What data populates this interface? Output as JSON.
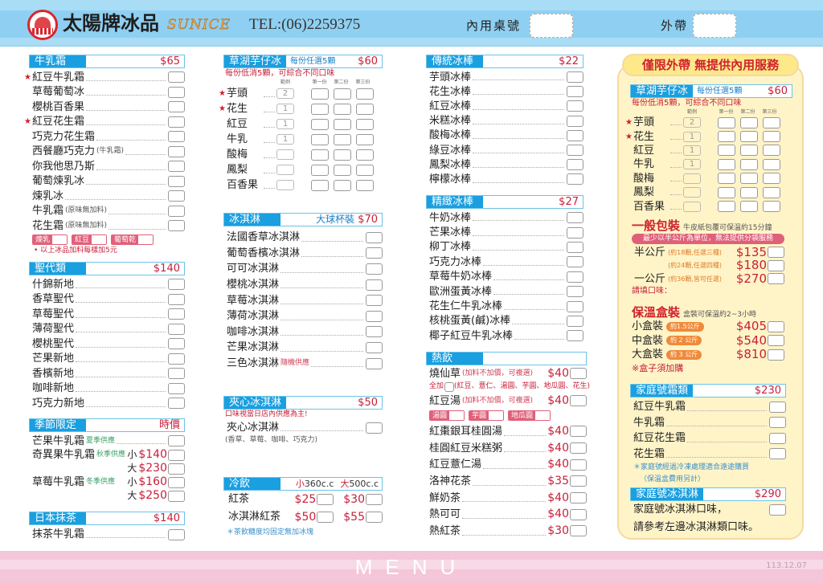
{
  "header": {
    "brand": "太陽牌冰品",
    "english": "SUNICE",
    "tel": "TEL:(06)2259375",
    "dine_in_label": "內用桌號",
    "takeout_label": "外帶",
    "bg_color": "#a9dcf5"
  },
  "footer": {
    "title": "MENU",
    "date": "113.12.07",
    "bg_color": "#f4c6da"
  },
  "colors": {
    "header_blue": "#1a9fe0",
    "price_red": "#c8203a",
    "season_green": "#3aa06a",
    "topping_pink": "#e0607a",
    "weight_orange": "#f08a3a",
    "takeout_box": "#fff4c8"
  },
  "col1": {
    "milk": {
      "title": "牛乳霜",
      "price": "$65",
      "items": [
        {
          "name": "紅豆牛乳霜",
          "star": true
        },
        {
          "name": "草莓葡萄冰"
        },
        {
          "name": "櫻桃百香果"
        },
        {
          "name": "紅豆花生霜",
          "star": true
        },
        {
          "name": "巧克力花生霜"
        },
        {
          "name": "西餐廳巧克力",
          "note": "(牛乳霜)"
        },
        {
          "name": "你我他思乃斯"
        },
        {
          "name": "葡萄煉乳冰"
        },
        {
          "name": "煉乳冰"
        },
        {
          "name": "牛乳霜",
          "note": "(原味無加料)"
        },
        {
          "name": "花生霜",
          "note": "(原味無加料)"
        }
      ],
      "toppings": [
        "煉乳",
        "紅豆",
        "葡萄乾"
      ],
      "footnote": "• 以上冰品加料每樣加5元"
    },
    "sundae": {
      "title": "聖代類",
      "price": "$140",
      "items": [
        {
          "name": "什錦新地"
        },
        {
          "name": "香草聖代"
        },
        {
          "name": "草莓聖代"
        },
        {
          "name": "薄荷聖代"
        },
        {
          "name": "櫻桃聖代"
        },
        {
          "name": "芒果新地"
        },
        {
          "name": "香檳新地"
        },
        {
          "name": "咖啡新地"
        },
        {
          "name": "巧克力新地"
        }
      ]
    },
    "season": {
      "title": "季節限定",
      "price": "時價",
      "items": [
        {
          "name": "芒果牛乳霜",
          "season": "夏季供應"
        },
        {
          "name": "奇異果牛乳霜",
          "season": "秋季供應",
          "options": [
            {
              "size": "小",
              "price": "$140"
            },
            {
              "size": "大",
              "price": "$230"
            }
          ]
        },
        {
          "name": "草莓牛乳霜",
          "season": "冬季供應",
          "options": [
            {
              "size": "小",
              "price": "$160"
            },
            {
              "size": "大",
              "price": "$250"
            }
          ]
        }
      ]
    },
    "matcha": {
      "title": "日本抹茶",
      "price": "$140",
      "items": [
        {
          "name": "抹茶牛乳霜"
        }
      ]
    }
  },
  "col2": {
    "taro": {
      "title": "草湖芋仔冰",
      "subtitle": "每份任選5顆",
      "price": "$60",
      "note": "每份低消5顆，可綜合不同口味",
      "columns": [
        "範例",
        "第一份",
        "第二份",
        "第三份"
      ],
      "items": [
        {
          "name": "芋頭",
          "star": true,
          "example": "2"
        },
        {
          "name": "花生",
          "star": true,
          "example": "1"
        },
        {
          "name": "紅豆",
          "example": "1"
        },
        {
          "name": "牛乳",
          "example": "1"
        },
        {
          "name": "酸梅",
          "example": ""
        },
        {
          "name": "鳳梨",
          "example": ""
        },
        {
          "name": "百香果",
          "example": ""
        }
      ]
    },
    "icecream": {
      "title": "冰淇淋",
      "subtitle": "大球杯裝",
      "price": "$70",
      "items": [
        {
          "name": "法國香草冰淇淋"
        },
        {
          "name": "葡萄香檳冰淇淋"
        },
        {
          "name": "可可冰淇淋"
        },
        {
          "name": "櫻桃冰淇淋"
        },
        {
          "name": "草莓冰淇淋"
        },
        {
          "name": "薄荷冰淇淋"
        },
        {
          "name": "咖啡冰淇淋"
        },
        {
          "name": "芒果冰淇淋"
        },
        {
          "name": "三色冰淇淋",
          "note": "隨機供應"
        }
      ]
    },
    "sandwich": {
      "title": "夾心冰淇淋",
      "price": "$50",
      "note": "口味視當日店內供應為主!",
      "items": [
        {
          "name": "夾心冰淇淋",
          "sub": "(香草、草莓、咖啡、巧克力)"
        }
      ]
    },
    "cold": {
      "title": "冷飲",
      "size_small": "小",
      "vol_small": "360c.c",
      "size_large": "大",
      "vol_large": "500c.c",
      "items": [
        {
          "name": "紅茶",
          "small": "$25",
          "large": "$30"
        },
        {
          "name": "冰淇淋紅茶",
          "small": "$50",
          "large": "$55"
        }
      ],
      "footnote": "＊茶飲糖度均固定無加冰塊"
    }
  },
  "col3": {
    "trad": {
      "title": "傳統冰棒",
      "price": "$22",
      "items": [
        {
          "name": "芋頭冰棒"
        },
        {
          "name": "花生冰棒"
        },
        {
          "name": "紅豆冰棒"
        },
        {
          "name": "米糕冰棒"
        },
        {
          "name": "酸梅冰棒"
        },
        {
          "name": "綠豆冰棒"
        },
        {
          "name": "鳳梨冰棒"
        },
        {
          "name": "檸檬冰棒"
        }
      ]
    },
    "fine": {
      "title": "精緻冰棒",
      "price": "$27",
      "items": [
        {
          "name": "牛奶冰棒"
        },
        {
          "name": "芒果冰棒"
        },
        {
          "name": "柳丁冰棒"
        },
        {
          "name": "巧克力冰棒"
        },
        {
          "name": "草莓牛奶冰棒"
        },
        {
          "name": "歐洲蛋黃冰棒"
        },
        {
          "name": "花生仁牛乳冰棒"
        },
        {
          "name": "核桃蛋黃(鹹)冰棒"
        },
        {
          "name": "椰子紅豆牛乳冰棒"
        }
      ]
    },
    "hot": {
      "title": "熱飲",
      "grass_jelly": {
        "name": "燒仙草",
        "note": "(加料不加價，可複選)",
        "price": "$40",
        "all_label": "全加",
        "all_note": "(紅豆、薏仁、湯圓、芋圓、地瓜圓、花生)"
      },
      "red_bean": {
        "name": "紅豆湯",
        "note": "(加料不加價，可複選)",
        "price": "$40",
        "toppings": [
          "湯圓",
          "芋圓",
          "地瓜圓"
        ]
      },
      "items": [
        {
          "name": "紅棗銀耳桂圓湯",
          "price": "$40"
        },
        {
          "name": "桂圓紅豆米糕粥",
          "price": "$40"
        },
        {
          "name": "紅豆薏仁湯",
          "price": "$40"
        },
        {
          "name": "洛神花茶",
          "price": "$35"
        },
        {
          "name": "鮮奶茶",
          "price": "$40"
        },
        {
          "name": "熱可可",
          "price": "$40"
        },
        {
          "name": "熱紅茶",
          "price": "$30"
        }
      ]
    }
  },
  "col4": {
    "banner": "僅限外帶 無提供內用服務",
    "taro": {
      "title": "草湖芋仔冰",
      "subtitle": "每份任選5顆",
      "price": "$60",
      "note": "每份低消5顆，可綜合不同口味",
      "columns": [
        "範例",
        "第一份",
        "第二份",
        "第三份"
      ],
      "items": [
        {
          "name": "芋頭",
          "star": true,
          "example": "2"
        },
        {
          "name": "花生",
          "star": true,
          "example": "1"
        },
        {
          "name": "紅豆",
          "example": "1"
        },
        {
          "name": "牛乳",
          "example": "1"
        },
        {
          "name": "酸梅",
          "example": ""
        },
        {
          "name": "鳳梨",
          "example": ""
        },
        {
          "name": "百香果",
          "example": ""
        }
      ]
    },
    "pack": {
      "title": "一般包裝",
      "desc": "牛皮紙包覆可保溫約15分鐘",
      "pill": "最少以半公斤為單位，無法提供分袋服務",
      "rows": [
        {
          "name": "半公斤",
          "note": "(約18顆,任選三種)",
          "price": "$135"
        },
        {
          "name": "",
          "note": "(約24顆,任選四種)",
          "price": "$180"
        },
        {
          "name": "一公斤",
          "note": "(約36顆,皆可任選)",
          "price": "$270"
        }
      ],
      "flavor_label": "請填口味："
    },
    "box": {
      "title": "保溫盒裝",
      "desc": "盒裝可保溫約2~3小時",
      "rows": [
        {
          "name": "小盒裝",
          "weight": "約1.5公斤",
          "price": "$405"
        },
        {
          "name": "中盒裝",
          "weight": "約 2 公斤",
          "price": "$540"
        },
        {
          "name": "大盒裝",
          "weight": "約 3 公斤",
          "price": "$810"
        }
      ],
      "note": "※盒子須加購"
    },
    "family": {
      "title": "家庭號霜類",
      "price": "$230",
      "items": [
        {
          "name": "紅豆牛乳霜"
        },
        {
          "name": "牛乳霜"
        },
        {
          "name": "紅豆花生霜"
        },
        {
          "name": "花生霜"
        }
      ],
      "notes": [
        "＊家庭號經過冷凍處理適合遠途購買",
        "（保溫盒費用另計）"
      ]
    },
    "family_ice": {
      "title": "家庭號冰淇淋",
      "price": "$290",
      "lines": [
        "家庭號冰淇淋口味，",
        "請參考左邊冰淇淋類口味。"
      ]
    }
  }
}
